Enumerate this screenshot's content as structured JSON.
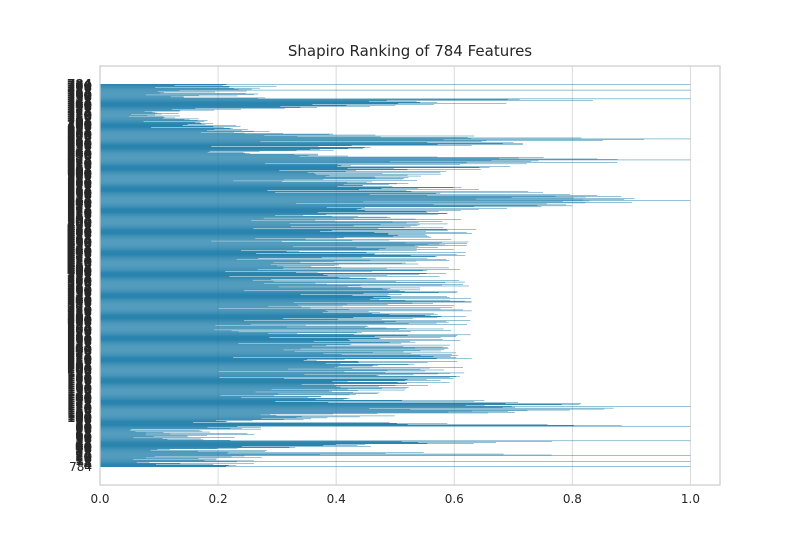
{
  "chart_data": {
    "type": "bar",
    "orientation": "horizontal",
    "title": "Shapiro Ranking of 784 Features",
    "xlabel": "",
    "ylabel": "",
    "xlim": [
      0,
      1.05
    ],
    "x_ticks": [
      "0.0",
      "0.2",
      "0.4",
      "0.6",
      "0.8",
      "1.0"
    ],
    "grid": true,
    "feature_count": 784,
    "y_tick_label_visible": "784",
    "bar_color": "#0c73a3",
    "profile": [
      {
        "index": 0,
        "value": 1.0
      },
      {
        "index": 12,
        "value": 1.0
      },
      {
        "index": 30,
        "value": 1.0
      },
      {
        "index": 56,
        "value": 0.12
      },
      {
        "index": 100,
        "value": 0.3
      },
      {
        "index": 112,
        "value": 1.0
      },
      {
        "index": 140,
        "value": 0.28
      },
      {
        "index": 155,
        "value": 1.0
      },
      {
        "index": 180,
        "value": 0.58
      },
      {
        "index": 210,
        "value": 0.6
      },
      {
        "index": 238,
        "value": 1.0
      },
      {
        "index": 260,
        "value": 0.63
      },
      {
        "index": 300,
        "value": 0.64
      },
      {
        "index": 340,
        "value": 0.62
      },
      {
        "index": 380,
        "value": 0.63
      },
      {
        "index": 420,
        "value": 0.635
      },
      {
        "index": 460,
        "value": 0.64
      },
      {
        "index": 500,
        "value": 0.635
      },
      {
        "index": 540,
        "value": 0.63
      },
      {
        "index": 580,
        "value": 0.63
      },
      {
        "index": 610,
        "value": 0.6
      },
      {
        "index": 640,
        "value": 0.45
      },
      {
        "index": 660,
        "value": 1.0
      },
      {
        "index": 690,
        "value": 0.28
      },
      {
        "index": 700,
        "value": 1.0
      },
      {
        "index": 730,
        "value": 1.0
      },
      {
        "index": 748,
        "value": 0.15
      },
      {
        "index": 760,
        "value": 1.0
      },
      {
        "index": 772,
        "value": 1.0
      },
      {
        "index": 783,
        "value": 1.0
      }
    ]
  }
}
